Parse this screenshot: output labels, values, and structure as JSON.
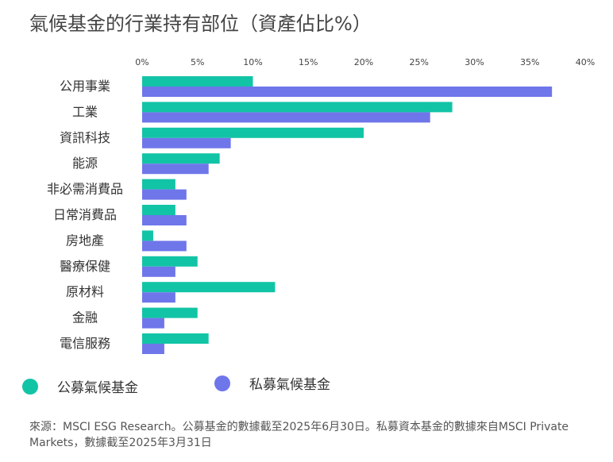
{
  "title": "氣候基金的行業持有部位（資產佔比%）",
  "chart_data": {
    "type": "bar",
    "orientation": "horizontal",
    "x_ticks": [
      "0%",
      "5%",
      "10%",
      "15%",
      "20%",
      "25%",
      "30%",
      "35%",
      "40%"
    ],
    "xlim": [
      0,
      40
    ],
    "tick_position": "top",
    "grid": false,
    "categories": [
      "公用事業",
      "工業",
      "資訊科技",
      "能源",
      "非必需消費品",
      "日常消費品",
      "房地產",
      "醫療保健",
      "原材料",
      "金融",
      "電信服務"
    ],
    "series": [
      {
        "name": "公募氣候基金",
        "color": "#12c4a6",
        "values": [
          10,
          28,
          20,
          7,
          3,
          3,
          1,
          5,
          12,
          5,
          6
        ]
      },
      {
        "name": "私募氣候基金",
        "color": "#6f76ea",
        "values": [
          37,
          26,
          8,
          6,
          4,
          4,
          4,
          3,
          3,
          2,
          2
        ]
      }
    ],
    "legend_position": "bottom-left"
  },
  "source": "來源：MSCI ESG Research。公募基金的數據截至2025年6月30日。私募資本基金的數據來自MSCI Private Markets，數據截至2025年3月31日"
}
